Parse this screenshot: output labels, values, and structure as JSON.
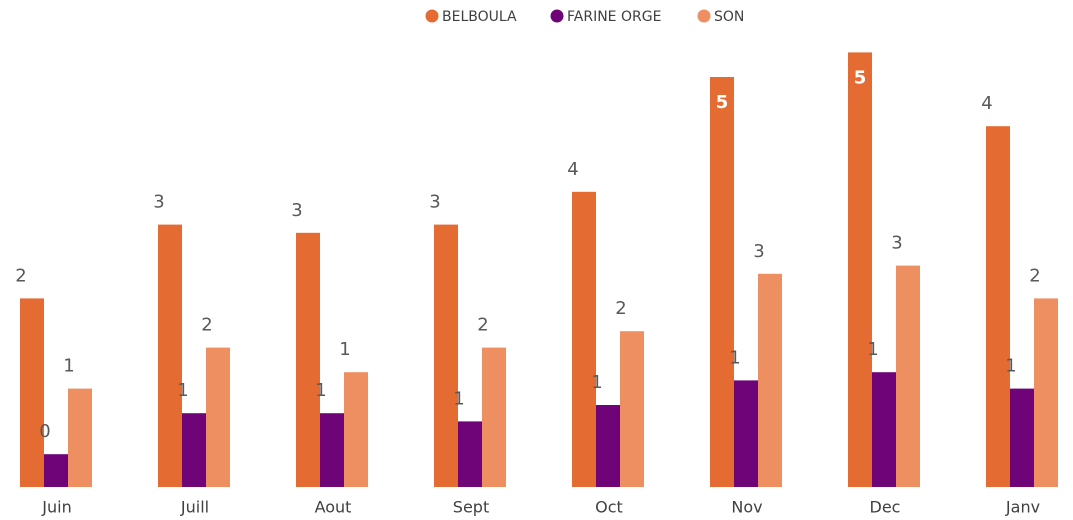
{
  "chart_data": {
    "type": "bar",
    "categories": [
      "Juin",
      "Juill",
      "Aout",
      "Sept",
      "Oct",
      "Nov",
      "Dec",
      "Janv"
    ],
    "series": [
      {
        "name": "BELBOULA",
        "color": "#E46C32",
        "values": [
          2.3,
          3.2,
          3.1,
          3.2,
          3.6,
          5.0,
          5.3,
          4.4
        ],
        "value_labels": [
          "2",
          "3",
          "3",
          "3",
          "4",
          "5",
          "5",
          "4"
        ]
      },
      {
        "name": "FARINE ORGE",
        "color": "#6F0479",
        "values": [
          0.4,
          0.9,
          0.9,
          0.8,
          1.0,
          1.3,
          1.4,
          1.2
        ],
        "value_labels": [
          "0",
          "1",
          "1",
          "1",
          "1",
          "1",
          "1",
          "1"
        ]
      },
      {
        "name": "SON",
        "color": "#EE8F61",
        "values": [
          1.2,
          1.7,
          1.4,
          1.7,
          1.9,
          2.6,
          2.7,
          2.3
        ],
        "value_labels": [
          "1",
          "2",
          "1",
          "2",
          "2",
          "3",
          "3",
          "2"
        ]
      }
    ],
    "legend": "top"
  }
}
